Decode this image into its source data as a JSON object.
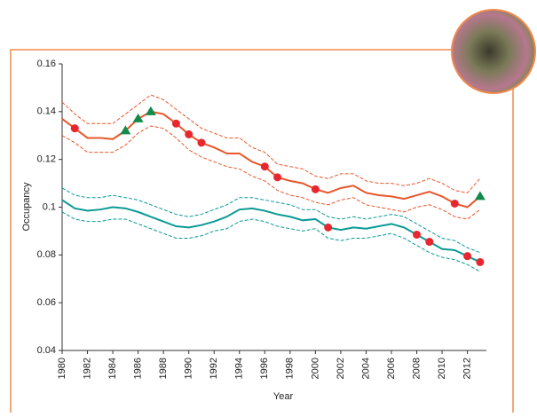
{
  "chart_data": {
    "type": "line",
    "x_label": "Year",
    "y_label": "Occupancy",
    "x": [
      1980,
      1981,
      1982,
      1983,
      1984,
      1985,
      1986,
      1987,
      1988,
      1989,
      1990,
      1991,
      1992,
      1993,
      1994,
      1995,
      1996,
      1997,
      1998,
      1999,
      2000,
      2001,
      2002,
      2003,
      2004,
      2005,
      2006,
      2007,
      2008,
      2009,
      2010,
      2011,
      2012,
      2013
    ],
    "xlim": [
      1980,
      2013.5
    ],
    "xticks": [
      1980,
      1982,
      1984,
      1986,
      1988,
      1990,
      1992,
      1994,
      1996,
      1998,
      2000,
      2002,
      2004,
      2006,
      2008,
      2010,
      2012
    ],
    "ylim": [
      0.04,
      0.16
    ],
    "yticks": [
      0.04,
      0.06,
      0.08,
      0.1,
      0.12,
      0.14,
      0.16
    ],
    "series": [
      {
        "style": "dashed",
        "color": "#e8572a",
        "values": [
          0.144,
          0.139,
          0.135,
          0.135,
          0.135,
          0.139,
          0.143,
          0.147,
          0.145,
          0.141,
          0.137,
          0.133,
          0.131,
          0.129,
          0.129,
          0.125,
          0.123,
          0.118,
          0.117,
          0.116,
          0.113,
          0.112,
          0.114,
          0.114,
          0.111,
          0.11,
          0.11,
          0.109,
          0.11,
          0.112,
          0.11,
          0.107,
          0.106,
          0.112
        ]
      },
      {
        "style": "dashed",
        "color": "#e8572a",
        "values": [
          0.13,
          0.127,
          0.123,
          0.123,
          0.123,
          0.126,
          0.131,
          0.134,
          0.133,
          0.129,
          0.124,
          0.121,
          0.119,
          0.117,
          0.116,
          0.113,
          0.111,
          0.107,
          0.105,
          0.104,
          0.102,
          0.101,
          0.103,
          0.104,
          0.101,
          0.1,
          0.099,
          0.098,
          0.1,
          0.101,
          0.099,
          0.096,
          0.095,
          0.099
        ]
      },
      {
        "style": "solid",
        "color": "#e8572a",
        "values": [
          0.137,
          0.133,
          0.129,
          0.129,
          0.1285,
          0.132,
          0.137,
          0.14,
          0.139,
          0.135,
          0.1305,
          0.127,
          0.125,
          0.1225,
          0.1225,
          0.119,
          0.117,
          0.1125,
          0.111,
          0.11,
          0.1075,
          0.106,
          0.108,
          0.109,
          0.106,
          0.105,
          0.1045,
          0.1035,
          0.105,
          0.1065,
          0.1045,
          0.1015,
          0.1,
          0.1045
        ]
      },
      {
        "style": "dashed",
        "color": "#0a9a94",
        "values": [
          0.108,
          0.105,
          0.104,
          0.104,
          0.105,
          0.104,
          0.103,
          0.101,
          0.099,
          0.097,
          0.096,
          0.097,
          0.099,
          0.101,
          0.104,
          0.104,
          0.103,
          0.102,
          0.101,
          0.099,
          0.099,
          0.096,
          0.095,
          0.096,
          0.095,
          0.096,
          0.097,
          0.096,
          0.093,
          0.09,
          0.087,
          0.086,
          0.083,
          0.081
        ]
      },
      {
        "style": "dashed",
        "color": "#0a9a94",
        "values": [
          0.098,
          0.095,
          0.094,
          0.094,
          0.095,
          0.095,
          0.093,
          0.091,
          0.089,
          0.087,
          0.087,
          0.088,
          0.09,
          0.091,
          0.094,
          0.095,
          0.094,
          0.092,
          0.091,
          0.09,
          0.091,
          0.087,
          0.086,
          0.087,
          0.087,
          0.088,
          0.089,
          0.087,
          0.084,
          0.081,
          0.079,
          0.078,
          0.076,
          0.073
        ]
      },
      {
        "style": "solid",
        "color": "#0a9a94",
        "values": [
          0.103,
          0.0995,
          0.0985,
          0.099,
          0.1,
          0.0995,
          0.098,
          0.096,
          0.094,
          0.092,
          0.0915,
          0.0925,
          0.094,
          0.096,
          0.099,
          0.0995,
          0.0985,
          0.097,
          0.096,
          0.0945,
          0.095,
          0.0915,
          0.0905,
          0.0915,
          0.091,
          0.092,
          0.093,
          0.0915,
          0.0885,
          0.0855,
          0.0825,
          0.082,
          0.0795,
          0.077
        ]
      },
      {
        "style": "circle",
        "color": "#e8262e",
        "values": [
          null,
          0.133,
          null,
          null,
          null,
          null,
          null,
          null,
          null,
          0.135,
          0.1305,
          0.127,
          null,
          null,
          null,
          null,
          0.117,
          0.1125,
          null,
          null,
          0.1075,
          null,
          null,
          null,
          null,
          null,
          null,
          null,
          null,
          null,
          null,
          0.1015,
          null,
          null
        ]
      },
      {
        "style": "triangle",
        "color": "#138a4a",
        "values": [
          null,
          null,
          null,
          null,
          null,
          0.132,
          0.137,
          0.14,
          null,
          null,
          null,
          null,
          null,
          null,
          null,
          null,
          null,
          null,
          null,
          null,
          null,
          null,
          null,
          null,
          null,
          null,
          null,
          null,
          null,
          null,
          null,
          null,
          null,
          0.1045
        ]
      },
      {
        "style": "circle",
        "color": "#e8262e",
        "values": [
          null,
          null,
          null,
          null,
          null,
          null,
          null,
          null,
          null,
          null,
          null,
          null,
          null,
          null,
          null,
          null,
          null,
          null,
          null,
          null,
          null,
          0.0915,
          null,
          null,
          null,
          null,
          null,
          null,
          0.0885,
          0.0855,
          null,
          null,
          0.0795,
          0.077
        ]
      }
    ]
  }
}
